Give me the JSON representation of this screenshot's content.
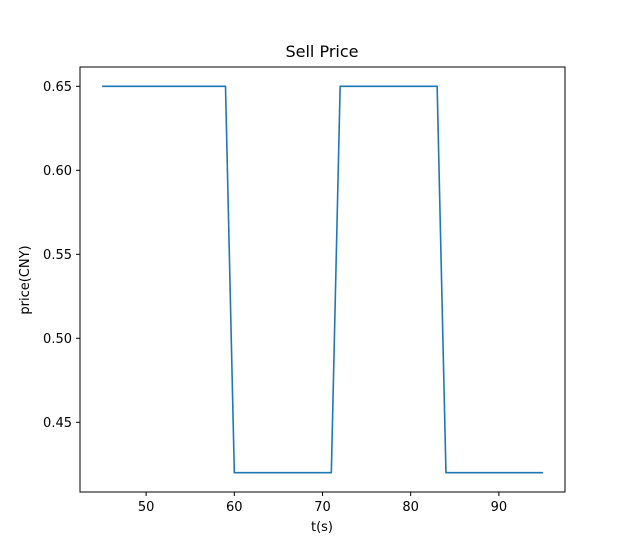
{
  "chart_data": {
    "type": "line",
    "title": "Sell Price",
    "xlabel": "t(s)",
    "ylabel": "price(CNY)",
    "xlim": [
      42.5,
      97.5
    ],
    "ylim": [
      0.4085,
      0.6615
    ],
    "xticks": [
      50,
      60,
      70,
      80,
      90
    ],
    "yticks": [
      0.45,
      0.5,
      0.55,
      0.6,
      0.65
    ],
    "xtick_labels": [
      "50",
      "60",
      "70",
      "80",
      "90"
    ],
    "ytick_labels": [
      "0.45",
      "0.50",
      "0.55",
      "0.60",
      "0.65"
    ],
    "grid": false,
    "series": [
      {
        "color": "#1f77b4",
        "x": [
          45,
          59,
          60,
          71,
          72,
          83,
          84,
          95
        ],
        "y": [
          0.65,
          0.65,
          0.42,
          0.42,
          0.65,
          0.65,
          0.42,
          0.42
        ]
      }
    ]
  }
}
